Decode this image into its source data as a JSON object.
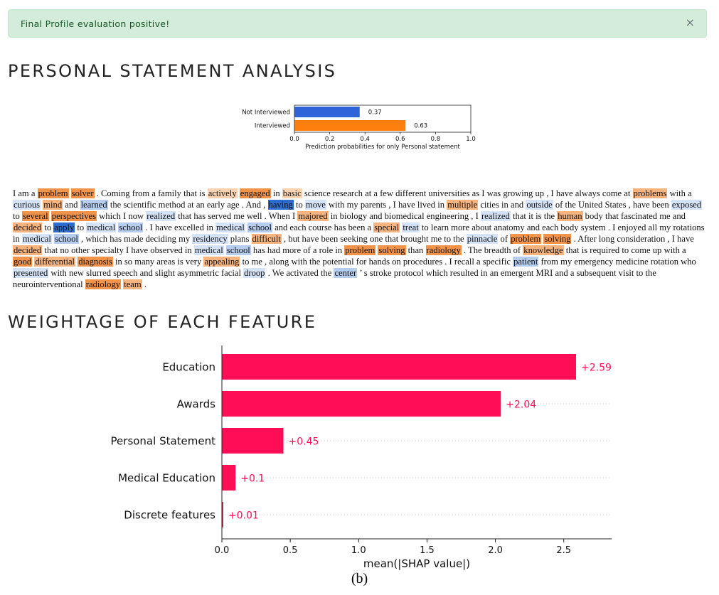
{
  "alert": {
    "message": "Final Profile evaluation positive!",
    "close_icon": "×"
  },
  "section1_title": "PERSONAL STATEMENT ANALYSIS",
  "section2_title": "WEIGHTAGE OF EACH FEATURE",
  "caption": "(b)",
  "chart_data": [
    {
      "type": "bar",
      "orientation": "horizontal",
      "categories": [
        "Not Interviewed",
        "Interviewed"
      ],
      "values": [
        0.37,
        0.63
      ],
      "colors": [
        "#2f64d8",
        "#ff7f0e"
      ],
      "xlabel": "Prediction probabilities for only Personal statement",
      "xlim": [
        0,
        1
      ],
      "xticks": [
        "0.0",
        "0.2",
        "0.4",
        "0.6",
        "0.8",
        "1.0"
      ]
    },
    {
      "type": "bar",
      "orientation": "horizontal",
      "categories": [
        "Education",
        "Awards",
        "Personal Statement",
        "Medical Education",
        "Discrete features"
      ],
      "values": [
        2.59,
        2.04,
        0.45,
        0.1,
        0.01
      ],
      "value_labels": [
        "+2.59",
        "+2.04",
        "+0.45",
        "+0.1",
        "+0.01"
      ],
      "color": "#ff0d57",
      "xlabel": "mean(|SHAP value|)",
      "xlim": [
        0,
        2.85
      ],
      "xticks": [
        "0.0",
        "0.5",
        "1.0",
        "1.5",
        "2.0",
        "2.5"
      ]
    }
  ],
  "statement": {
    "colors": {
      "o3": "#f4934a",
      "o2": "#f8b37f",
      "o1": "#fbd3b3",
      "b1": "#d4e3f8",
      "b2": "#b6cdf0",
      "b3": "#2f6ccf"
    },
    "tokens": [
      [
        "I am a ",
        ""
      ],
      [
        "problem",
        "o3"
      ],
      [
        " ",
        ""
      ],
      [
        "solver",
        "o3"
      ],
      [
        " . Coming from a family that is ",
        ""
      ],
      [
        "actively",
        "o1"
      ],
      [
        " ",
        ""
      ],
      [
        "engaged",
        "o3"
      ],
      [
        " in ",
        ""
      ],
      [
        "basic",
        "o1"
      ],
      [
        " science research at a few different universities as I was growing up , I have always come at ",
        ""
      ],
      [
        "problems",
        "o2"
      ],
      [
        " with a ",
        ""
      ],
      [
        "curious",
        "b1"
      ],
      [
        " ",
        ""
      ],
      [
        "mind",
        "o2"
      ],
      [
        " and ",
        ""
      ],
      [
        "learned",
        "b2"
      ],
      [
        " the scientific method at an early age . And , ",
        ""
      ],
      [
        "having",
        "b3"
      ],
      [
        " to ",
        ""
      ],
      [
        "move",
        "b1"
      ],
      [
        " with my parents , I have lived in ",
        ""
      ],
      [
        "multiple",
        "o2"
      ],
      [
        " cities in and ",
        ""
      ],
      [
        "outside",
        "b1"
      ],
      [
        " of the United States , have been ",
        ""
      ],
      [
        "exposed",
        "b1"
      ],
      [
        " to ",
        ""
      ],
      [
        "several",
        "o3"
      ],
      [
        " ",
        ""
      ],
      [
        "perspectives",
        "o3"
      ],
      [
        " which I now ",
        ""
      ],
      [
        "realized",
        "b1"
      ],
      [
        " that has served me well . When I ",
        ""
      ],
      [
        "majored",
        "o2"
      ],
      [
        " in biology and biomedical engineering , I ",
        ""
      ],
      [
        "realized",
        "b1"
      ],
      [
        " that it is the ",
        ""
      ],
      [
        "human",
        "o2"
      ],
      [
        " body that fascinated me and ",
        ""
      ],
      [
        "decided",
        "o2"
      ],
      [
        " to ",
        ""
      ],
      [
        "apply",
        "b3"
      ],
      [
        " to ",
        ""
      ],
      [
        "medical",
        "b1"
      ],
      [
        " ",
        ""
      ],
      [
        "school",
        "b2"
      ],
      [
        " . I have excelled in ",
        ""
      ],
      [
        "medical",
        "b1"
      ],
      [
        " ",
        ""
      ],
      [
        "school",
        "b2"
      ],
      [
        " and each course has been a ",
        ""
      ],
      [
        "special",
        "o2"
      ],
      [
        " ",
        ""
      ],
      [
        "treat",
        "b1"
      ],
      [
        " to learn more about anatomy and each body system . I enjoyed all my rotations in ",
        ""
      ],
      [
        "medical",
        "b1"
      ],
      [
        " ",
        ""
      ],
      [
        "school",
        "b2"
      ],
      [
        " , which has made deciding my ",
        ""
      ],
      [
        "residency",
        "b1"
      ],
      [
        " plans ",
        ""
      ],
      [
        "difficult",
        "o2"
      ],
      [
        " , but have been seeking one that brought me to the ",
        ""
      ],
      [
        "pinnacle",
        "b1"
      ],
      [
        " of ",
        ""
      ],
      [
        "problem",
        "o3"
      ],
      [
        " ",
        ""
      ],
      [
        "solving",
        "o3"
      ],
      [
        " . After long consideration , I have ",
        ""
      ],
      [
        "decided",
        "o2"
      ],
      [
        " that no other specialty I have observed in ",
        ""
      ],
      [
        "medical",
        "b1"
      ],
      [
        " ",
        ""
      ],
      [
        "school",
        "b2"
      ],
      [
        " has had more of a role in ",
        ""
      ],
      [
        "problem",
        "o3"
      ],
      [
        " ",
        ""
      ],
      [
        "solving",
        "o3"
      ],
      [
        " than ",
        ""
      ],
      [
        "radiology",
        "o3"
      ],
      [
        " . The breadth of ",
        ""
      ],
      [
        "knowledge",
        "o2"
      ],
      [
        " that is required to come up with a ",
        ""
      ],
      [
        "good",
        "o3"
      ],
      [
        " ",
        ""
      ],
      [
        "differential",
        "o2"
      ],
      [
        " ",
        ""
      ],
      [
        "diagnosis",
        "o3"
      ],
      [
        " in so many areas is very ",
        ""
      ],
      [
        "appealing",
        "o2"
      ],
      [
        " to me , along with the potential for hands on procedures . I recall a specific ",
        ""
      ],
      [
        "patient",
        "b2"
      ],
      [
        " from my emergency medicine rotation who ",
        ""
      ],
      [
        "presented",
        "b1"
      ],
      [
        " with new slurred speech and slight asymmetric facial ",
        ""
      ],
      [
        "droop",
        "b1"
      ],
      [
        " . We activated the ",
        ""
      ],
      [
        "center",
        "b2"
      ],
      [
        " ’ s stroke protocol which resulted in an emergent MRI and a subsequent visit to the neurointerventional ",
        ""
      ],
      [
        "radiology",
        "o3"
      ],
      [
        " ",
        ""
      ],
      [
        "team",
        "o2"
      ],
      [
        " .",
        ""
      ]
    ]
  }
}
